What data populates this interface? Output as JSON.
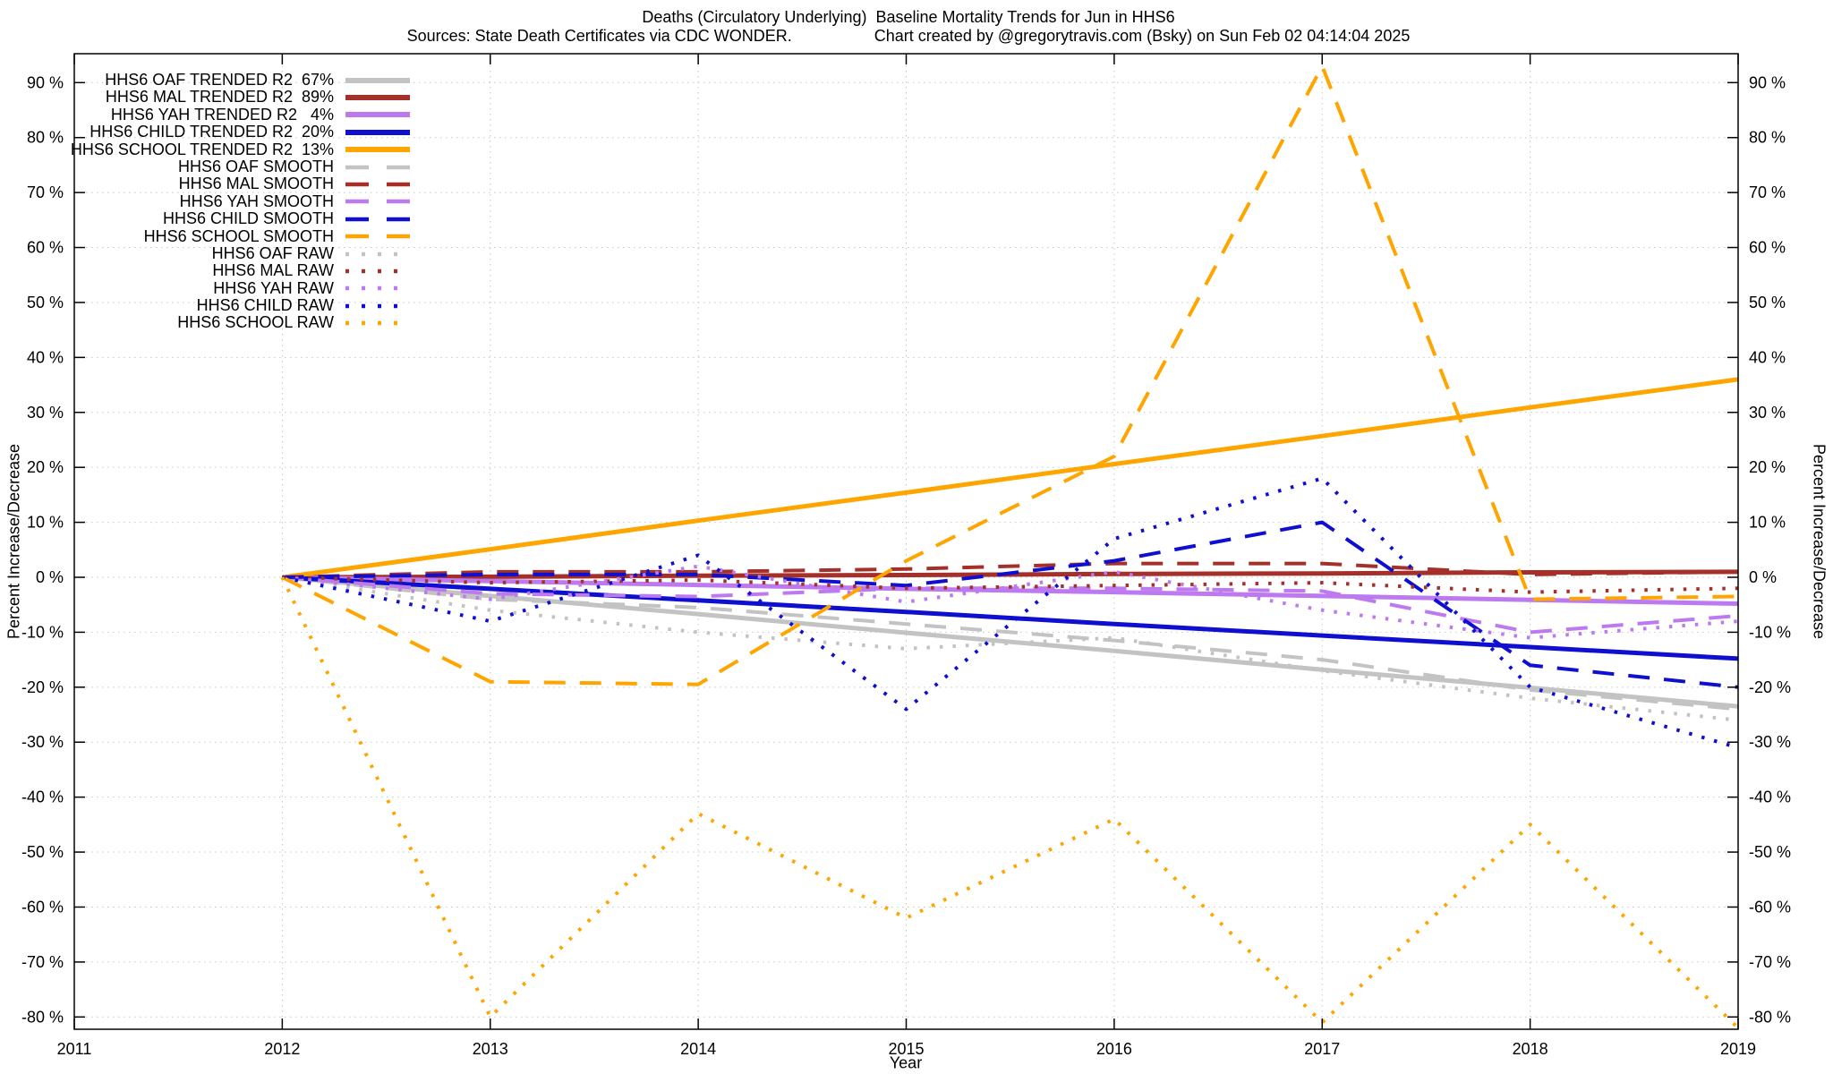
{
  "title": {
    "line1": "Deaths (Circulatory Underlying)  Baseline Mortality Trends for Jun in HHS6",
    "sources": "Sources: State Death Certificates via CDC WONDER.",
    "credit": "Chart created by @gregorytravis.com (Bsky) on Sun Feb 02 04:14:04 2025"
  },
  "axes": {
    "x_label": "Year",
    "y_label_left": "Percent Increase/Decrease",
    "y_label_right": "Percent Increase/Decrease",
    "x_ticks": [
      "2011",
      "2012",
      "2013",
      "2014",
      "2015",
      "2016",
      "2017",
      "2018",
      "2019"
    ],
    "y_ticks": [
      90,
      80,
      70,
      60,
      50,
      40,
      30,
      20,
      10,
      0,
      -10,
      -20,
      -30,
      -40,
      -50,
      -60,
      -70,
      -80
    ],
    "y_tick_suffix": " %"
  },
  "colors": {
    "gray": "#c3c3c3",
    "dark_red": "#a5302a",
    "violet": "#bd7af0",
    "blue": "#0f0fd0",
    "orange": "#ffa500",
    "grid": "#c6c6c6",
    "axis": "#000000"
  },
  "legend": [
    {
      "label": "HHS6 OAF TRENDED R2  67%",
      "series": 0
    },
    {
      "label": "HHS6 MAL TRENDED R2  89%",
      "series": 1
    },
    {
      "label": "HHS6 YAH TRENDED R2   4%",
      "series": 2
    },
    {
      "label": "HHS6 CHILD TRENDED R2  20%",
      "series": 3
    },
    {
      "label": "HHS6 SCHOOL TRENDED R2  13%",
      "series": 4
    },
    {
      "label": "HHS6 OAF SMOOTH",
      "series": 5
    },
    {
      "label": "HHS6 MAL SMOOTH",
      "series": 6
    },
    {
      "label": "HHS6 YAH SMOOTH",
      "series": 7
    },
    {
      "label": "HHS6 CHILD SMOOTH",
      "series": 8
    },
    {
      "label": "HHS6 SCHOOL SMOOTH",
      "series": 9
    },
    {
      "label": "HHS6 OAF RAW",
      "series": 10
    },
    {
      "label": "HHS6 MAL RAW",
      "series": 11
    },
    {
      "label": "HHS6 YAH RAW",
      "series": 12
    },
    {
      "label": "HHS6 CHILD RAW",
      "series": 13
    },
    {
      "label": "HHS6 SCHOOL RAW",
      "series": 14
    }
  ],
  "chart_data": {
    "type": "line",
    "title": "Deaths (Circulatory Underlying)  Baseline Mortality Trends for Jun in HHS6",
    "xlabel": "Year",
    "ylabel": "Percent Increase/Decrease",
    "xlim": [
      2011,
      2019
    ],
    "ylim": [
      -82,
      95
    ],
    "grid": true,
    "legend_position": "top-left",
    "x": [
      2012,
      2013,
      2014,
      2015,
      2016,
      2017,
      2018,
      2019
    ],
    "series": [
      {
        "name": "HHS6 OAF TRENDED",
        "r2": "67%",
        "style": "solid",
        "color": "gray",
        "width": 5,
        "values": [
          0,
          -3.4,
          -6.7,
          -10.1,
          -13.4,
          -16.8,
          -20.1,
          -23.5
        ]
      },
      {
        "name": "HHS6 MAL TRENDED",
        "r2": "89%",
        "style": "solid",
        "color": "dark_red",
        "width": 5,
        "values": [
          0,
          0.1,
          0.3,
          0.4,
          0.6,
          0.7,
          0.9,
          1
        ]
      },
      {
        "name": "HHS6 YAH TRENDED",
        "r2": "4%",
        "style": "solid",
        "color": "violet",
        "width": 5,
        "values": [
          0,
          -0.7,
          -1.4,
          -2.1,
          -2.7,
          -3.4,
          -4.1,
          -4.8
        ]
      },
      {
        "name": "HHS6 CHILD TRENDED",
        "r2": "20%",
        "style": "solid",
        "color": "blue",
        "width": 5,
        "values": [
          0,
          -2.1,
          -4.2,
          -6.3,
          -8.5,
          -10.6,
          -12.7,
          -14.8
        ]
      },
      {
        "name": "HHS6 SCHOOL TRENDED",
        "r2": "13%",
        "style": "solid",
        "color": "orange",
        "width": 5,
        "values": [
          0,
          5.1,
          10.3,
          15.4,
          20.6,
          25.7,
          30.9,
          36
        ]
      },
      {
        "name": "HHS6 OAF SMOOTH",
        "style": "dashed",
        "color": "gray",
        "width": 4,
        "values": [
          0,
          -4,
          -5.5,
          -8.5,
          -11.5,
          -15,
          -20.5,
          -24
        ]
      },
      {
        "name": "HHS6 MAL SMOOTH",
        "style": "dashed",
        "color": "dark_red",
        "width": 4,
        "values": [
          0,
          1,
          1,
          1.5,
          2.5,
          2.5,
          0.5,
          1
        ]
      },
      {
        "name": "HHS6 YAH SMOOTH",
        "style": "dashed",
        "color": "violet",
        "width": 4,
        "values": [
          0,
          -3,
          -3.5,
          -2,
          -2,
          -2.5,
          -10,
          -7
        ]
      },
      {
        "name": "HHS6 CHILD SMOOTH",
        "style": "dashed",
        "color": "blue",
        "width": 4,
        "values": [
          0,
          0.5,
          0.5,
          -1.5,
          3,
          10,
          -16,
          -20
        ]
      },
      {
        "name": "HHS6 SCHOOL SMOOTH",
        "style": "dashed",
        "color": "orange",
        "width": 4,
        "values": [
          0,
          -19,
          -19.5,
          3,
          22,
          93,
          -4,
          -3.5
        ]
      },
      {
        "name": "HHS6 OAF RAW",
        "style": "dotted",
        "color": "gray",
        "width": 4,
        "values": [
          0,
          -6,
          -10,
          -13,
          -11,
          -17,
          -22,
          -26
        ]
      },
      {
        "name": "HHS6 MAL RAW",
        "style": "dotted",
        "color": "dark_red",
        "width": 4,
        "values": [
          0,
          -1,
          -0.5,
          -2,
          -1.5,
          -1,
          -2.7,
          -2
        ]
      },
      {
        "name": "HHS6 YAH RAW",
        "style": "dotted",
        "color": "violet",
        "width": 4,
        "values": [
          0,
          -4,
          2,
          -4.5,
          1,
          -6,
          -11,
          -8
        ]
      },
      {
        "name": "HHS6 CHILD RAW",
        "style": "dotted",
        "color": "blue",
        "width": 4,
        "values": [
          0,
          -8,
          4,
          -24,
          7,
          18,
          -20,
          -31
        ]
      },
      {
        "name": "HHS6 SCHOOL RAW",
        "style": "dotted",
        "color": "orange",
        "width": 4,
        "values": [
          0,
          -80,
          -43,
          -62,
          -44,
          -81,
          -45,
          -82
        ]
      }
    ]
  }
}
